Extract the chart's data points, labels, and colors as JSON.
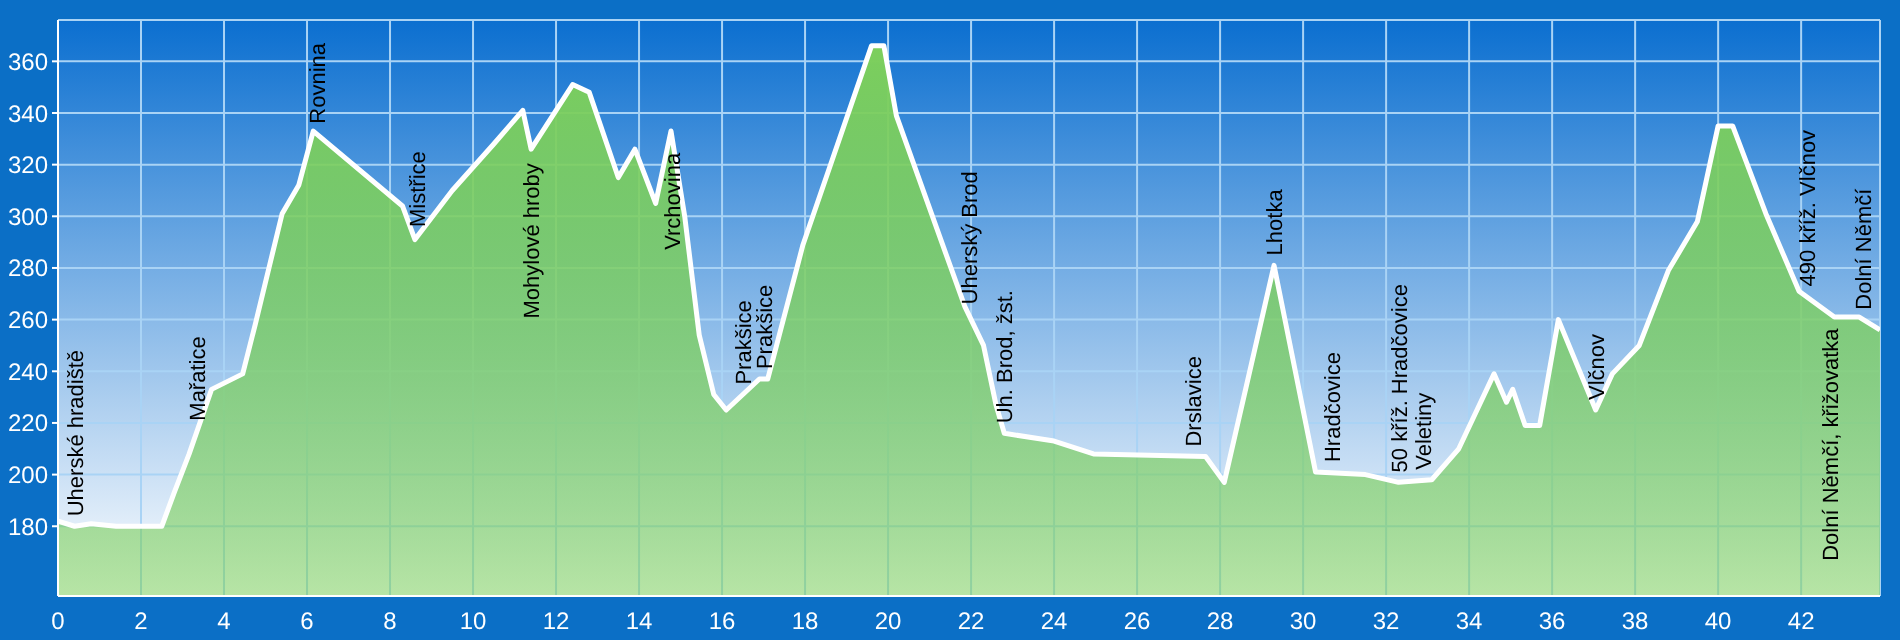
{
  "chart_data": {
    "type": "area",
    "xlim": [
      0,
      43.9
    ],
    "ylim": [
      153,
      376
    ],
    "xticks": [
      0,
      2,
      4,
      6,
      8,
      10,
      12,
      14,
      16,
      18,
      20,
      22,
      24,
      26,
      28,
      30,
      32,
      34,
      36,
      38,
      40,
      42
    ],
    "yticks": [
      180,
      200,
      220,
      240,
      260,
      280,
      300,
      320,
      340,
      360
    ],
    "grid": true,
    "legend": false,
    "series": [
      {
        "color": "#7ccf5c",
        "x": [
          0,
          0.4,
          0.8,
          1.4,
          2.5,
          2.8,
          3.16,
          3.7,
          4.45,
          4.75,
          5.4,
          5.8,
          6.15,
          8.3,
          8.6,
          9.5,
          10.5,
          11.2,
          11.4,
          12.4,
          12.8,
          13.5,
          13.9,
          14.4,
          14.77,
          15.1,
          15.45,
          15.8,
          16.1,
          16.9,
          17.1,
          17.95,
          19.6,
          19.9,
          20.2,
          21.85,
          22.3,
          22.6,
          22.8,
          24.0,
          24.95,
          27.65,
          28.1,
          29.3,
          30.3,
          31.5,
          32.3,
          33.1,
          33.75,
          34.6,
          34.9,
          35.05,
          35.35,
          35.7,
          36.15,
          37.05,
          37.45,
          38.1,
          38.8,
          39.5,
          40.0,
          40.35,
          41.15,
          41.95,
          42.8,
          43.4,
          43.9
        ],
        "values": [
          182,
          180,
          181,
          180,
          180,
          193,
          208,
          233,
          239,
          258,
          301,
          312,
          333,
          304,
          291,
          310,
          328,
          341,
          326,
          351,
          348,
          315,
          326,
          305,
          333,
          300,
          254,
          231,
          225,
          237,
          237,
          289,
          366,
          366,
          339,
          265,
          250,
          227,
          216,
          213,
          208,
          207,
          197,
          281,
          201,
          200,
          197,
          198,
          210,
          239,
          228,
          233,
          219,
          219,
          260,
          225,
          239,
          250,
          279,
          298,
          335,
          335,
          301,
          271,
          261,
          261,
          256
        ]
      }
    ],
    "annotations": [
      {
        "text": "Uherské hradiště",
        "x": 0.4,
        "y": 180
      },
      {
        "text": "Mařatice",
        "x": 3.35,
        "y": 217
      },
      {
        "text": "Rovnina",
        "x": 6.25,
        "y": 332
      },
      {
        "text": "Mistřice",
        "x": 8.65,
        "y": 292
      },
      {
        "text": "Mohylové hroby",
        "x": 11.4,
        "y": 326
      },
      {
        "text": "Vrchovina",
        "x": 14.8,
        "y": 330
      },
      {
        "text": "Prakšice",
        "x": 16.5,
        "y": 231
      },
      {
        "text": "Prakšice",
        "x": 17.0,
        "y": 237
      },
      {
        "text": "Uherský Brod",
        "x": 21.95,
        "y": 262
      },
      {
        "text": "Uh. Brod, žst.",
        "x": 22.8,
        "y": 216
      },
      {
        "text": "Drslavice",
        "x": 27.35,
        "y": 207
      },
      {
        "text": "Lhotka",
        "x": 29.3,
        "y": 281
      },
      {
        "text": "Hradčovice",
        "x": 30.7,
        "y": 201
      },
      {
        "text": "50 kříž. Hradčovice",
        "x": 32.3,
        "y": 197
      },
      {
        "text": "Veletiny",
        "x": 32.9,
        "y": 198
      },
      {
        "text": "Vlčnov",
        "x": 37.05,
        "y": 225
      },
      {
        "text": "490 kříž. Vlčnov",
        "x": 42.15,
        "y": 269
      },
      {
        "text": "Dolní Němčí, křižovatka",
        "x": 42.7,
        "y": 262
      },
      {
        "text": "Dolní Němčí",
        "x": 43.5,
        "y": 260
      }
    ]
  }
}
